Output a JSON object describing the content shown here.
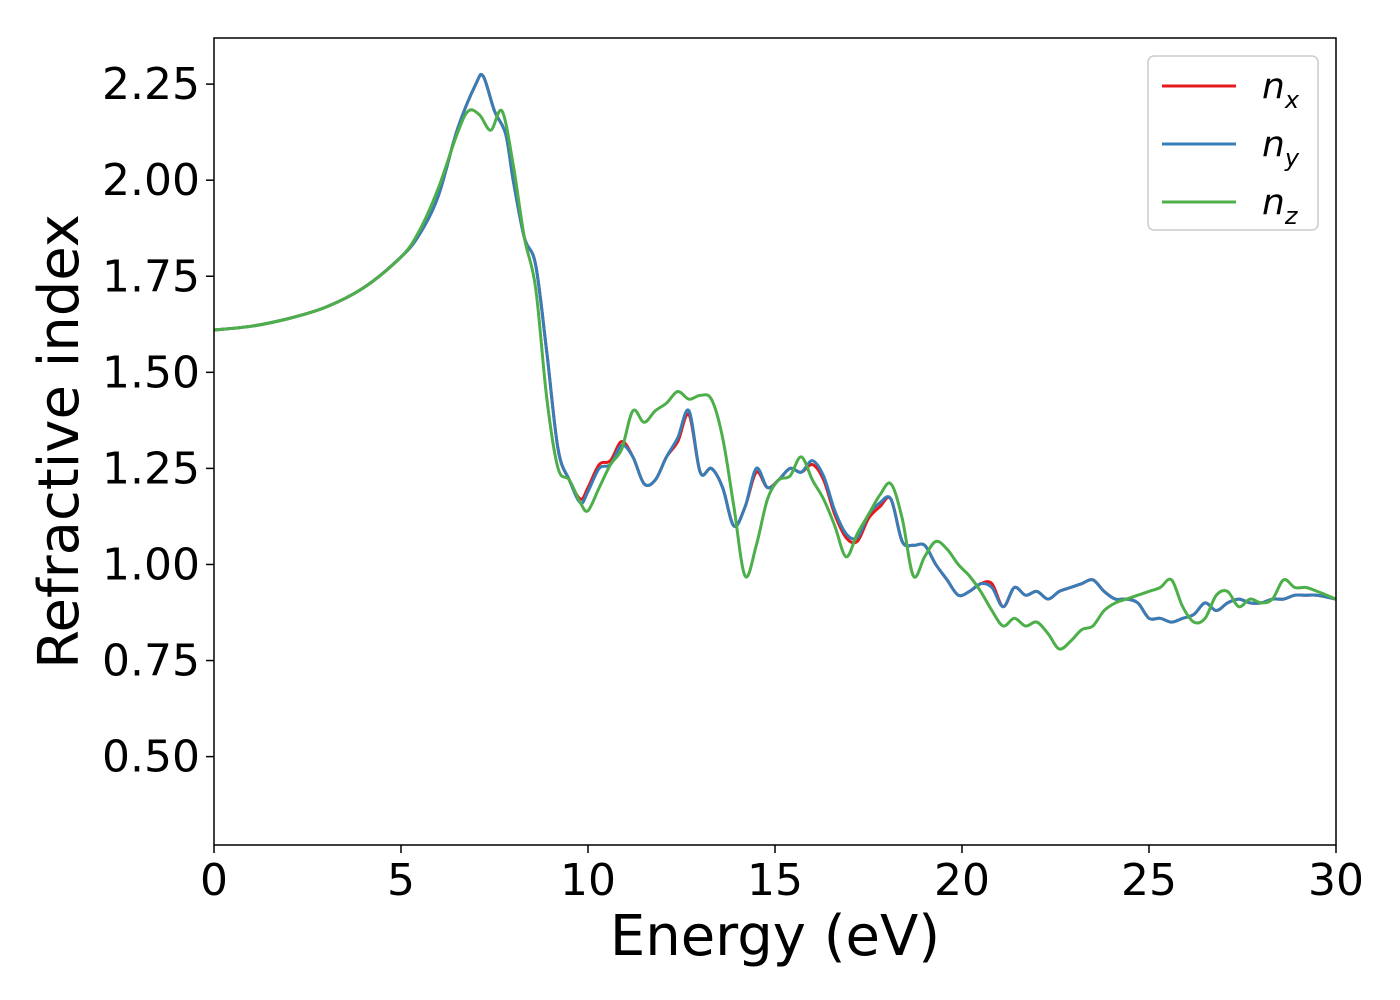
{
  "chart_data": {
    "type": "line",
    "xlabel": "Energy (eV)",
    "ylabel": "Refractive index",
    "xlim": [
      0,
      30
    ],
    "ylim": [
      0.27,
      2.37
    ],
    "xticks": [
      0,
      5,
      10,
      15,
      20,
      25,
      30
    ],
    "xtick_labels": [
      "0",
      "5",
      "10",
      "15",
      "20",
      "25",
      "30"
    ],
    "yticks": [
      0.5,
      0.75,
      1.0,
      1.25,
      1.5,
      1.75,
      2.0,
      2.25
    ],
    "ytick_labels": [
      "0.50",
      "0.75",
      "1.00",
      "1.25",
      "1.50",
      "1.75",
      "2.00",
      "2.25"
    ],
    "grid": false,
    "legend_position": "top-right",
    "series": [
      {
        "name": "n",
        "subscript": "x",
        "color": "#e41a1c",
        "x": [
          0,
          1,
          2,
          3,
          4,
          5,
          5.5,
          6,
          6.5,
          7,
          7.2,
          7.5,
          7.8,
          8,
          8.3,
          8.6,
          8.9,
          9.2,
          9.5,
          9.8,
          10,
          10.3,
          10.6,
          10.9,
          11.2,
          11.5,
          11.8,
          12.1,
          12.4,
          12.7,
          13,
          13.3,
          13.6,
          13.9,
          14.2,
          14.5,
          14.8,
          15.1,
          15.4,
          15.7,
          16,
          16.3,
          16.6,
          16.9,
          17.2,
          17.5,
          17.8,
          18.1,
          18.4,
          18.7,
          19,
          19.3,
          19.6,
          19.9,
          20.2,
          20.5,
          20.8,
          21.1,
          21.4,
          21.7,
          22,
          22.3,
          22.6,
          22.9,
          23.2,
          23.5,
          23.8,
          24.1,
          24.4,
          24.7,
          25,
          25.3,
          25.6,
          25.9,
          26.2,
          26.5,
          26.8,
          27.1,
          27.4,
          27.7,
          28,
          28.3,
          28.6,
          28.9,
          29.2,
          29.5,
          30
        ],
        "y": [
          1.61,
          1.62,
          1.64,
          1.67,
          1.72,
          1.8,
          1.86,
          1.96,
          2.13,
          2.25,
          2.27,
          2.18,
          2.12,
          2.0,
          1.85,
          1.78,
          1.55,
          1.3,
          1.22,
          1.17,
          1.2,
          1.26,
          1.27,
          1.32,
          1.28,
          1.21,
          1.22,
          1.28,
          1.32,
          1.39,
          1.24,
          1.25,
          1.2,
          1.1,
          1.15,
          1.24,
          1.2,
          1.22,
          1.25,
          1.24,
          1.26,
          1.22,
          1.13,
          1.07,
          1.06,
          1.12,
          1.15,
          1.17,
          1.06,
          1.05,
          1.05,
          1.0,
          0.96,
          0.92,
          0.93,
          0.95,
          0.95,
          0.89,
          0.94,
          0.92,
          0.93,
          0.91,
          0.93,
          0.94,
          0.95,
          0.96,
          0.93,
          0.91,
          0.91,
          0.9,
          0.86,
          0.86,
          0.85,
          0.86,
          0.87,
          0.9,
          0.88,
          0.9,
          0.91,
          0.9,
          0.9,
          0.91,
          0.91,
          0.92,
          0.92,
          0.92,
          0.91
        ]
      },
      {
        "name": "n",
        "subscript": "y",
        "color": "#377eb8",
        "x": [
          0,
          1,
          2,
          3,
          4,
          5,
          5.5,
          6,
          6.5,
          7,
          7.2,
          7.5,
          7.8,
          8,
          8.3,
          8.6,
          8.9,
          9.2,
          9.5,
          9.8,
          10,
          10.3,
          10.6,
          10.9,
          11.2,
          11.5,
          11.8,
          12.1,
          12.4,
          12.7,
          13,
          13.3,
          13.6,
          13.9,
          14.2,
          14.5,
          14.8,
          15.1,
          15.4,
          15.7,
          16,
          16.3,
          16.6,
          16.9,
          17.2,
          17.5,
          17.8,
          18.1,
          18.4,
          18.7,
          19,
          19.3,
          19.6,
          19.9,
          20.2,
          20.5,
          20.8,
          21.1,
          21.4,
          21.7,
          22,
          22.3,
          22.6,
          22.9,
          23.2,
          23.5,
          23.8,
          24.1,
          24.4,
          24.7,
          25,
          25.3,
          25.6,
          25.9,
          26.2,
          26.5,
          26.8,
          27.1,
          27.4,
          27.7,
          28,
          28.3,
          28.6,
          28.9,
          29.2,
          29.5,
          30
        ],
        "y": [
          1.61,
          1.62,
          1.64,
          1.67,
          1.72,
          1.8,
          1.86,
          1.96,
          2.13,
          2.25,
          2.27,
          2.18,
          2.12,
          2.0,
          1.85,
          1.78,
          1.55,
          1.3,
          1.22,
          1.16,
          1.19,
          1.25,
          1.26,
          1.31,
          1.28,
          1.21,
          1.22,
          1.28,
          1.33,
          1.4,
          1.24,
          1.25,
          1.2,
          1.1,
          1.15,
          1.25,
          1.2,
          1.22,
          1.25,
          1.24,
          1.27,
          1.23,
          1.14,
          1.08,
          1.07,
          1.13,
          1.16,
          1.17,
          1.06,
          1.05,
          1.05,
          1.0,
          0.96,
          0.92,
          0.93,
          0.95,
          0.94,
          0.89,
          0.94,
          0.92,
          0.93,
          0.91,
          0.93,
          0.94,
          0.95,
          0.96,
          0.93,
          0.91,
          0.91,
          0.9,
          0.86,
          0.86,
          0.85,
          0.86,
          0.87,
          0.9,
          0.88,
          0.9,
          0.91,
          0.9,
          0.9,
          0.91,
          0.91,
          0.92,
          0.92,
          0.92,
          0.91
        ]
      },
      {
        "name": "n",
        "subscript": "z",
        "color": "#4daf4a",
        "x": [
          0,
          1,
          2,
          3,
          4,
          5,
          5.5,
          6,
          6.5,
          6.8,
          7.1,
          7.4,
          7.7,
          8,
          8.3,
          8.6,
          8.9,
          9.2,
          9.5,
          9.8,
          10,
          10.3,
          10.6,
          10.9,
          11.2,
          11.5,
          11.8,
          12.1,
          12.4,
          12.7,
          13,
          13.3,
          13.6,
          13.9,
          14.2,
          14.5,
          14.8,
          15.1,
          15.4,
          15.7,
          16,
          16.3,
          16.6,
          16.9,
          17.2,
          17.5,
          17.8,
          18.1,
          18.4,
          18.7,
          19,
          19.3,
          19.6,
          19.9,
          20.2,
          20.5,
          20.8,
          21.1,
          21.4,
          21.7,
          22,
          22.3,
          22.6,
          22.9,
          23.2,
          23.5,
          23.8,
          24.1,
          24.4,
          24.7,
          25,
          25.3,
          25.6,
          25.9,
          26.2,
          26.5,
          26.8,
          27.1,
          27.4,
          27.7,
          28,
          28.3,
          28.6,
          28.9,
          29.2,
          29.5,
          30
        ],
        "y": [
          1.61,
          1.62,
          1.64,
          1.67,
          1.72,
          1.8,
          1.87,
          1.98,
          2.12,
          2.18,
          2.17,
          2.13,
          2.18,
          2.04,
          1.85,
          1.72,
          1.43,
          1.25,
          1.22,
          1.16,
          1.14,
          1.2,
          1.26,
          1.3,
          1.4,
          1.37,
          1.4,
          1.42,
          1.45,
          1.43,
          1.44,
          1.43,
          1.33,
          1.15,
          0.97,
          1.05,
          1.17,
          1.22,
          1.23,
          1.28,
          1.22,
          1.17,
          1.1,
          1.02,
          1.08,
          1.13,
          1.18,
          1.21,
          1.12,
          0.97,
          1.02,
          1.06,
          1.04,
          1.0,
          0.97,
          0.93,
          0.88,
          0.84,
          0.86,
          0.84,
          0.85,
          0.82,
          0.78,
          0.8,
          0.83,
          0.84,
          0.88,
          0.9,
          0.91,
          0.92,
          0.93,
          0.94,
          0.96,
          0.89,
          0.85,
          0.86,
          0.92,
          0.93,
          0.89,
          0.91,
          0.9,
          0.91,
          0.96,
          0.94,
          0.94,
          0.93,
          0.91
        ]
      }
    ]
  }
}
